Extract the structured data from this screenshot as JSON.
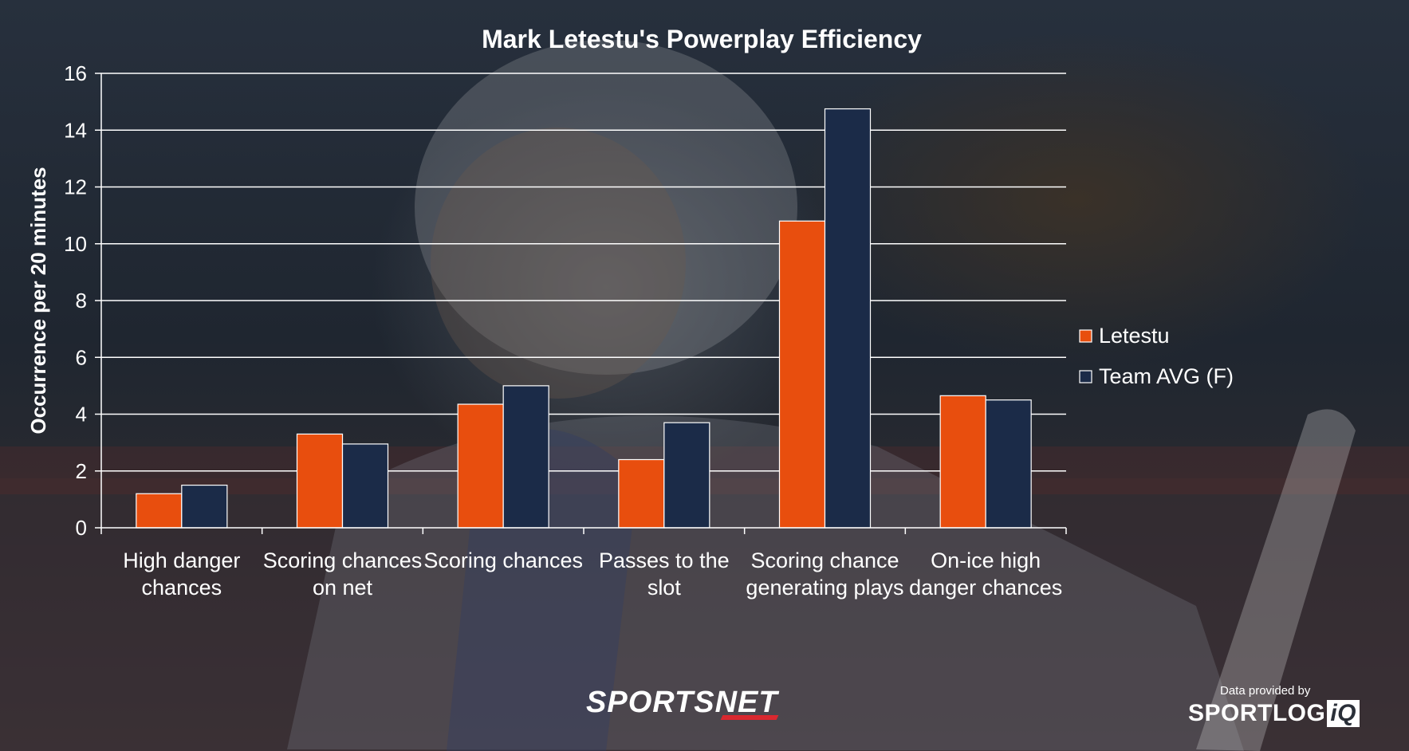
{
  "chart_data": {
    "type": "bar",
    "title": "Mark Letestu's Powerplay Efficiency",
    "ylabel": "Occurrence per 20 minutes",
    "xlabel": "",
    "ylim": [
      0,
      16
    ],
    "yticks": [
      0,
      2,
      4,
      6,
      8,
      10,
      12,
      14,
      16
    ],
    "grid": true,
    "legend_position": "right",
    "categories": [
      [
        "High danger",
        "chances"
      ],
      [
        "Scoring chances",
        "on net"
      ],
      [
        "Scoring chances"
      ],
      [
        "Passes to the",
        "slot"
      ],
      [
        "Scoring chance",
        "generating plays"
      ],
      [
        "On-ice high",
        "danger chances"
      ]
    ],
    "series": [
      {
        "name": "Letestu",
        "color": "#e84e0e",
        "values": [
          1.2,
          3.3,
          4.35,
          2.4,
          10.8,
          4.65
        ]
      },
      {
        "name": "Team AVG (F)",
        "color": "#1b2b48",
        "values": [
          1.5,
          2.95,
          5.0,
          3.7,
          14.75,
          4.5
        ]
      }
    ]
  },
  "branding": {
    "sportsnet": "SPORTSNET",
    "provided_by": "Data provided by",
    "sportlogiq_main": "SPORTLOG",
    "sportlogiq_iq": "iQ"
  }
}
